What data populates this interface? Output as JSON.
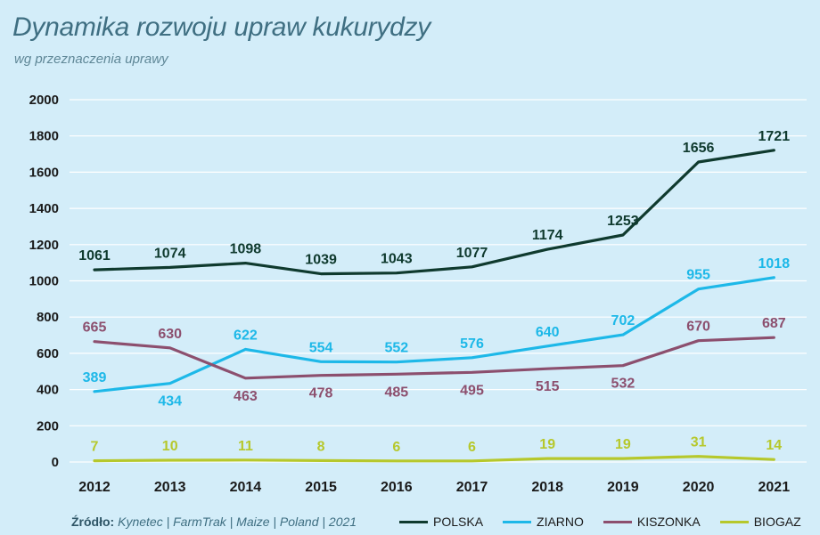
{
  "chart_data": {
    "type": "line",
    "title": "Dynamika rozwoju upraw kukurydzy",
    "subtitle": "wg przeznaczenia uprawy",
    "categories": [
      "2012",
      "2013",
      "2014",
      "2015",
      "2016",
      "2017",
      "2018",
      "2019",
      "2020",
      "2021"
    ],
    "ylim": [
      0,
      2000
    ],
    "yticks": [
      0,
      200,
      400,
      600,
      800,
      1000,
      1200,
      1400,
      1600,
      1800,
      2000
    ],
    "grid": true,
    "legend_placement": "bottom-right",
    "series": [
      {
        "name": "POLSKA",
        "color": "#0f3a2e",
        "label_position": "above",
        "values": [
          1061,
          1074,
          1098,
          1039,
          1043,
          1077,
          1174,
          1253,
          1656,
          1721
        ]
      },
      {
        "name": "ZIARNO",
        "color": "#1db8e8",
        "label_position": "mixed",
        "values": [
          389,
          434,
          622,
          554,
          552,
          576,
          640,
          702,
          955,
          1018
        ]
      },
      {
        "name": "KISZONKA",
        "color": "#8c4f6e",
        "label_position": "mixed",
        "values": [
          665,
          630,
          463,
          478,
          485,
          495,
          515,
          532,
          670,
          687
        ]
      },
      {
        "name": "BIOGAZ",
        "color": "#b6c82c",
        "label_position": "above",
        "values": [
          7,
          10,
          11,
          8,
          6,
          6,
          19,
          19,
          31,
          14
        ]
      }
    ]
  },
  "footer": {
    "source_label": "Źródło:",
    "source_text": "Kynetec | FarmTrak | Maize | Poland | 2021"
  }
}
